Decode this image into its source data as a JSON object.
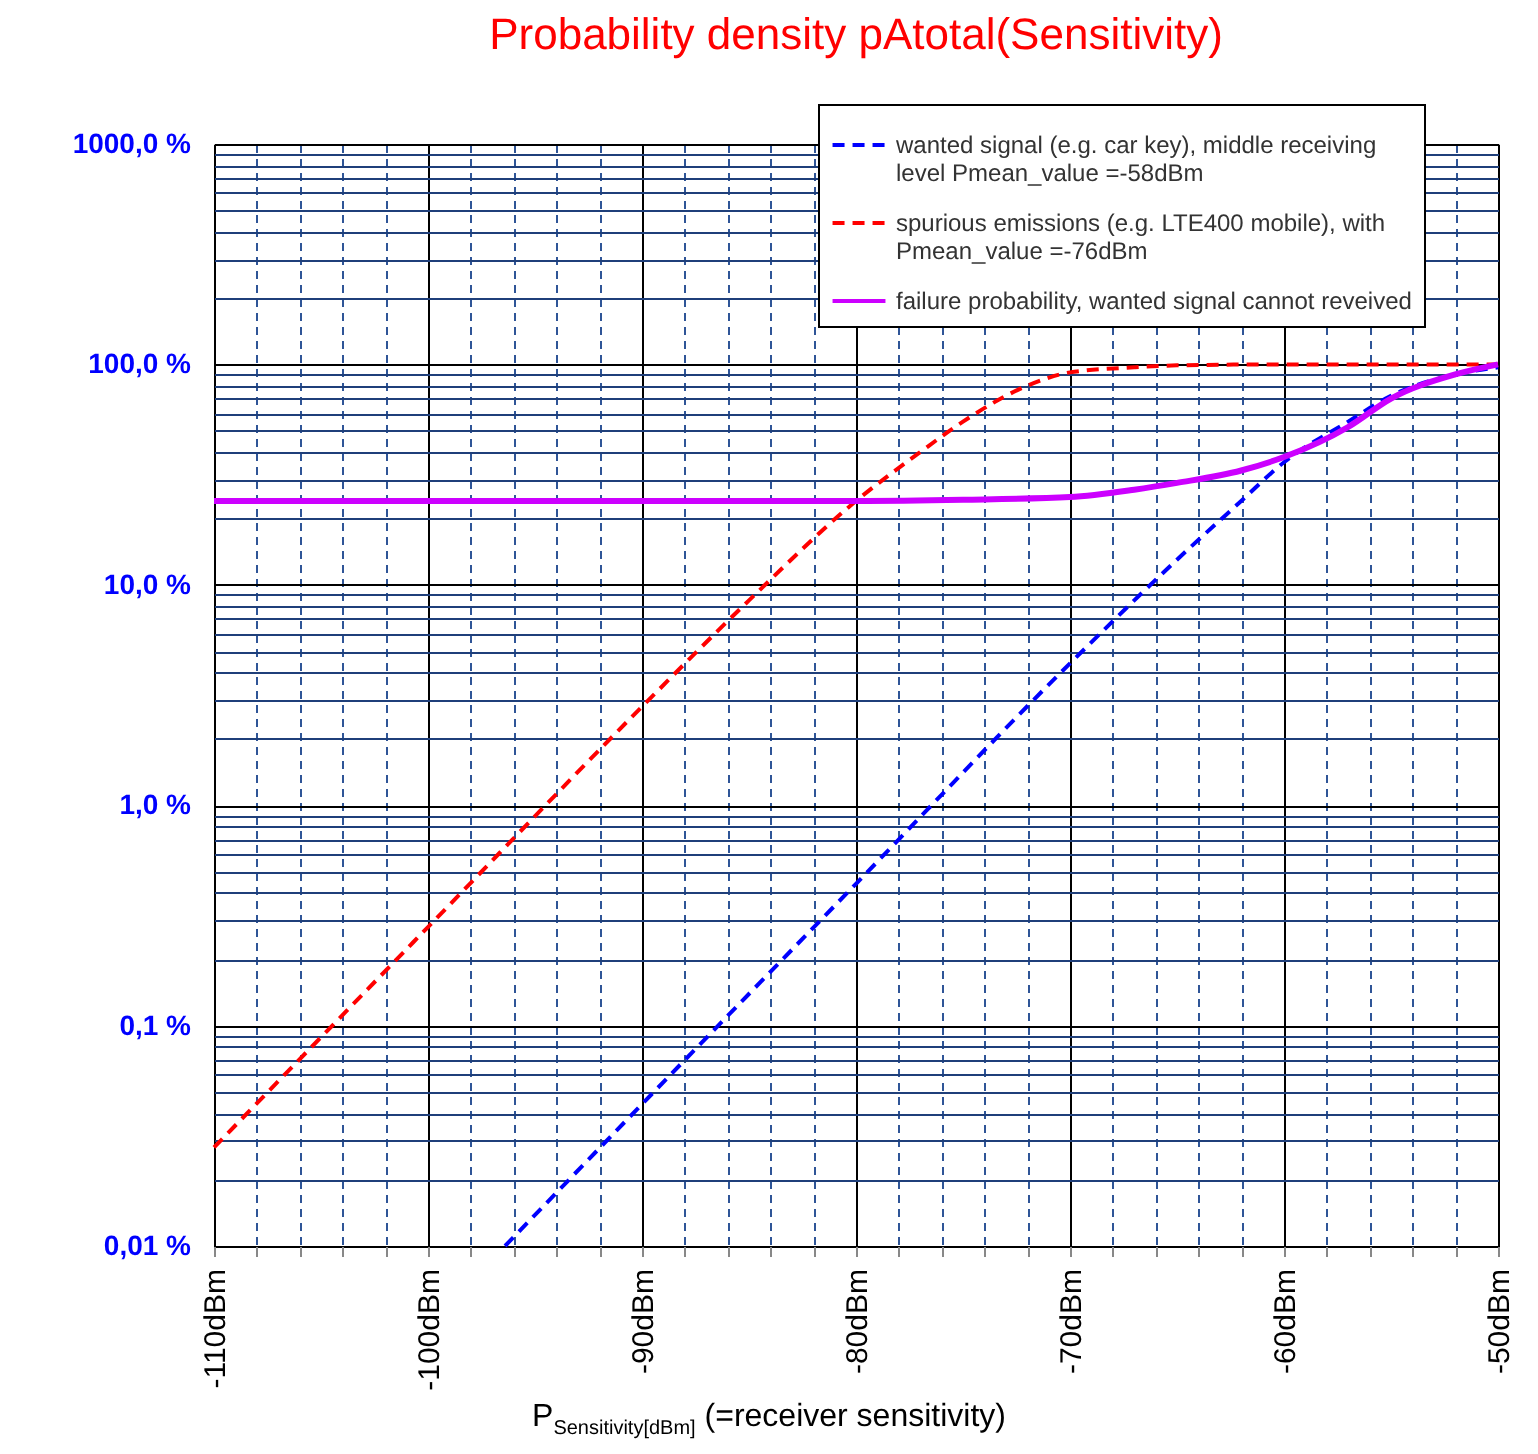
{
  "chart_data": {
    "type": "line",
    "title": "Probability density pAtotal(Sensitivity)",
    "xlabel": "P$_{Sensitivity[dBm]}$  (=receiver sensitivity)",
    "log": "y",
    "grid": true,
    "legend": "top right",
    "marker": "none",
    "xlim": [
      -110,
      -50
    ],
    "ylim": [
      0.01,
      1000
    ],
    "xticks": [
      {
        "value": -110,
        "label": "-110dBm"
      },
      {
        "value": -108,
        "label": null
      },
      {
        "value": -106,
        "label": null
      },
      {
        "value": -104,
        "label": null
      },
      {
        "value": -102,
        "label": null
      },
      {
        "value": -100,
        "label": "-100dBm"
      },
      {
        "value": -98,
        "label": null
      },
      {
        "value": -96,
        "label": null
      },
      {
        "value": -94,
        "label": null
      },
      {
        "value": -92,
        "label": null
      },
      {
        "value": -90,
        "label": "-90dBm"
      },
      {
        "value": -88,
        "label": null
      },
      {
        "value": -86,
        "label": null
      },
      {
        "value": -84,
        "label": null
      },
      {
        "value": -82,
        "label": null
      },
      {
        "value": -80,
        "label": "-80dBm"
      },
      {
        "value": -78,
        "label": null
      },
      {
        "value": -76,
        "label": null
      },
      {
        "value": -74,
        "label": null
      },
      {
        "value": -72,
        "label": null
      },
      {
        "value": -70,
        "label": "-70dBm"
      },
      {
        "value": -68,
        "label": null
      },
      {
        "value": -66,
        "label": null
      },
      {
        "value": -64,
        "label": null
      },
      {
        "value": -62,
        "label": null
      },
      {
        "value": -60,
        "label": "-60dBm"
      },
      {
        "value": -58,
        "label": null
      },
      {
        "value": -56,
        "label": null
      },
      {
        "value": -54,
        "label": null
      },
      {
        "value": -52,
        "label": null
      },
      {
        "value": -50,
        "label": "-50dBm"
      }
    ],
    "yticks": [
      {
        "value": 0.01,
        "label": "0,01 %"
      },
      {
        "value": 0.02,
        "label": null
      },
      {
        "value": 0.03,
        "label": null
      },
      {
        "value": 0.04,
        "label": null
      },
      {
        "value": 0.05,
        "label": null
      },
      {
        "value": 0.06,
        "label": null
      },
      {
        "value": 0.07,
        "label": null
      },
      {
        "value": 0.08,
        "label": null
      },
      {
        "value": 0.09,
        "label": null
      },
      {
        "value": 0.1,
        "label": "0,1 %"
      },
      {
        "value": 0.2,
        "label": null
      },
      {
        "value": 0.3,
        "label": null
      },
      {
        "value": 0.4,
        "label": null
      },
      {
        "value": 0.5,
        "label": null
      },
      {
        "value": 0.6,
        "label": null
      },
      {
        "value": 0.7,
        "label": null
      },
      {
        "value": 0.8,
        "label": null
      },
      {
        "value": 0.9,
        "label": null
      },
      {
        "value": 1,
        "label": "1,0 %"
      },
      {
        "value": 2,
        "label": null
      },
      {
        "value": 3,
        "label": null
      },
      {
        "value": 4,
        "label": null
      },
      {
        "value": 5,
        "label": null
      },
      {
        "value": 6,
        "label": null
      },
      {
        "value": 7,
        "label": null
      },
      {
        "value": 8,
        "label": null
      },
      {
        "value": 9,
        "label": null
      },
      {
        "value": 10,
        "label": "10,0 %"
      },
      {
        "value": 20,
        "label": null
      },
      {
        "value": 30,
        "label": null
      },
      {
        "value": 40,
        "label": null
      },
      {
        "value": 50,
        "label": null
      },
      {
        "value": 60,
        "label": null
      },
      {
        "value": 70,
        "label": null
      },
      {
        "value": 80,
        "label": null
      },
      {
        "value": 90,
        "label": null
      },
      {
        "value": 100,
        "label": "100,0 %"
      },
      {
        "value": 200,
        "label": null
      },
      {
        "value": 300,
        "label": null
      },
      {
        "value": 400,
        "label": null
      },
      {
        "value": 500,
        "label": null
      },
      {
        "value": 600,
        "label": null
      },
      {
        "value": 700,
        "label": null
      },
      {
        "value": 800,
        "label": null
      },
      {
        "value": 900,
        "label": null
      },
      {
        "value": 1000,
        "label": "1000,0 %"
      }
    ],
    "series": [
      {
        "name": "wanted signal (e.g. car key), middle receiving level Pmean_value =-58dBm",
        "color": "#0000ff",
        "line_style": "dashed",
        "x": [
          -96.4,
          -90,
          -80,
          -70,
          -65,
          -62,
          -60,
          -57,
          -55,
          -52,
          -50
        ],
        "values": [
          0.01,
          0.044,
          0.44,
          4.4,
          13,
          24,
          36,
          55,
          72,
          90,
          97
        ]
      },
      {
        "name": "spurious emissions (e.g. LTE400 mobile), with Pmean_value =-76dBm",
        "color": "#ff0000",
        "line_style": "dashed",
        "x": [
          -110,
          -100,
          -90,
          -85,
          -80,
          -77,
          -75,
          -72,
          -70,
          -67,
          -65,
          -60,
          -55,
          -50
        ],
        "values": [
          0.028,
          0.28,
          2.8,
          8.5,
          24,
          40,
          55,
          80,
          92,
          97,
          99,
          100,
          100,
          100
        ]
      },
      {
        "name": "failure probability, wanted signal cannot reveived",
        "color": "#cc00ff",
        "line_style": "solid",
        "x": [
          -110,
          -90,
          -80,
          -75,
          -70,
          -67,
          -65,
          -62,
          -60,
          -57,
          -55,
          -52,
          -50
        ],
        "values": [
          24,
          24,
          24,
          24.3,
          25,
          27,
          29,
          33,
          38,
          52,
          70,
          90,
          100
        ]
      }
    ]
  }
}
